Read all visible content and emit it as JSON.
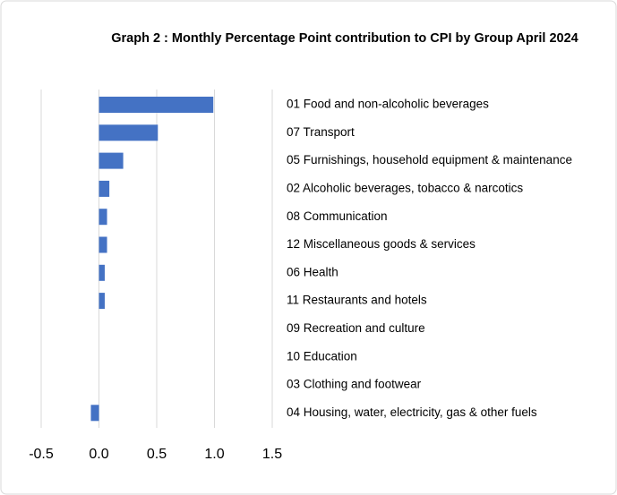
{
  "chart_data": {
    "type": "bar",
    "orientation": "horizontal",
    "title": "Graph 2 : Monthly Percentage Point contribution to CPI by Group  April 2024",
    "categories": [
      "01 Food and non-alcoholic beverages",
      "07 Transport",
      "05 Furnishings, household equipment & maintenance",
      "02 Alcoholic beverages, tobacco & narcotics",
      "08 Communication",
      "12 Miscellaneous goods & services",
      "06 Health",
      "11 Restaurants and hotels",
      "09 Recreation and culture",
      "10 Education",
      "03 Clothing and footwear",
      "04 Housing, water, electricity, gas & other fuels"
    ],
    "values": [
      0.99,
      0.51,
      0.21,
      0.09,
      0.07,
      0.07,
      0.05,
      0.05,
      0.0,
      0.0,
      0.0,
      -0.07
    ],
    "color": "#4472c4",
    "xlim": [
      -0.5,
      1.5
    ],
    "xticks": [
      -0.5,
      {
        "value": 0,
        "label": "0.0"
      },
      0.5,
      {
        "value": 1,
        "label": "1.0"
      },
      1.5
    ],
    "grid": true
  }
}
